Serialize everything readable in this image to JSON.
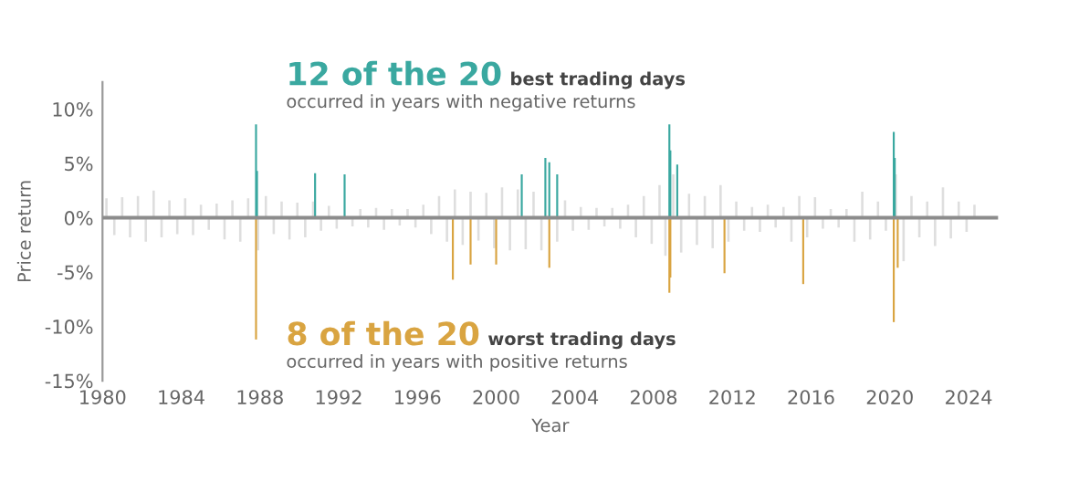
{
  "chart_data": {
    "type": "bar",
    "xlabel": "Year",
    "ylabel": "Price return",
    "xlim": [
      1980,
      2025.5
    ],
    "ylim": [
      -15,
      12.5
    ],
    "xticks": [
      1980,
      1984,
      1988,
      1992,
      1996,
      2000,
      2004,
      2008,
      2012,
      2016,
      2020,
      2024
    ],
    "yticks": [
      {
        "value": 10,
        "label": "10%"
      },
      {
        "value": 5,
        "label": "5%"
      },
      {
        "value": 0,
        "label": "0%"
      },
      {
        "value": -5,
        "label": "-5%"
      },
      {
        "value": -10,
        "label": "-10%"
      },
      {
        "value": -15,
        "label": "-15%"
      }
    ],
    "grid": false,
    "tick_labels": true,
    "ref_lines": [
      {
        "axis": "y",
        "value": 0,
        "color": "#8c8c8c"
      }
    ],
    "series": [
      {
        "color": "#dedede",
        "x": [
          1980.2,
          1980.6,
          1981.0,
          1981.4,
          1981.8,
          1982.2,
          1982.6,
          1983.0,
          1983.4,
          1983.8,
          1984.2,
          1984.6,
          1985.0,
          1985.4,
          1985.8,
          1986.2,
          1986.6,
          1987.0,
          1987.4,
          1987.9,
          1988.3,
          1988.7,
          1989.1,
          1989.5,
          1989.9,
          1990.3,
          1990.7,
          1991.1,
          1991.5,
          1991.9,
          1992.3,
          1992.7,
          1993.1,
          1993.5,
          1993.9,
          1994.3,
          1994.7,
          1995.1,
          1995.5,
          1995.9,
          1996.3,
          1996.7,
          1997.1,
          1997.5,
          1997.9,
          1998.3,
          1998.7,
          1999.1,
          1999.5,
          1999.9,
          2000.3,
          2000.7,
          2001.1,
          2001.5,
          2001.9,
          2002.3,
          2002.7,
          2003.1,
          2003.5,
          2003.9,
          2004.3,
          2004.7,
          2005.1,
          2005.5,
          2005.9,
          2006.3,
          2006.7,
          2007.1,
          2007.5,
          2007.9,
          2008.3,
          2008.6,
          2009.0,
          2009.4,
          2009.8,
          2010.2,
          2010.6,
          2011.0,
          2011.4,
          2011.8,
          2012.2,
          2012.6,
          2013.0,
          2013.4,
          2013.8,
          2014.2,
          2014.6,
          2015.0,
          2015.4,
          2015.8,
          2016.2,
          2016.6,
          2017.0,
          2017.4,
          2017.8,
          2018.2,
          2018.6,
          2019.0,
          2019.4,
          2019.8,
          2020.3,
          2020.7,
          2021.1,
          2021.5,
          2021.9,
          2022.3,
          2022.7,
          2023.1,
          2023.5,
          2023.9,
          2024.3
        ],
        "values": [
          1.8,
          -1.6,
          1.9,
          -1.8,
          2.0,
          -2.2,
          2.5,
          -1.8,
          1.6,
          -1.5,
          1.8,
          -1.6,
          1.2,
          -1.1,
          1.3,
          -2.0,
          1.6,
          -2.2,
          1.8,
          -3.0,
          2.0,
          -1.5,
          1.5,
          -2.0,
          1.4,
          -1.8,
          1.5,
          -1.2,
          1.1,
          -1.0,
          null,
          -0.8,
          0.8,
          -0.9,
          0.9,
          -1.1,
          0.8,
          -0.7,
          0.8,
          -0.9,
          1.2,
          -1.5,
          2.0,
          -2.2,
          2.6,
          -2.5,
          2.4,
          -2.1,
          2.3,
          -2.8,
          2.8,
          -3.0,
          2.6,
          -2.9,
          2.4,
          -3.0,
          null,
          -2.2,
          1.6,
          -1.2,
          1.0,
          -1.1,
          0.9,
          -0.8,
          0.9,
          -1.0,
          1.2,
          -1.8,
          2.0,
          -2.4,
          3.0,
          -3.5,
          4.0,
          -3.2,
          2.2,
          -2.5,
          2.0,
          -2.8,
          3.0,
          -2.2,
          1.5,
          -1.2,
          1.0,
          -1.3,
          1.2,
          -0.9,
          1.0,
          -2.2,
          2.0,
          -1.8,
          1.9,
          -1.0,
          0.8,
          -0.9,
          0.8,
          -2.2,
          2.4,
          -2.0,
          1.5,
          -1.2,
          4.0,
          -4.0,
          2.0,
          -1.8,
          1.5,
          -2.6,
          2.8,
          -1.9,
          1.5,
          -1.3,
          1.2
        ]
      },
      {
        "color": "#3aa8a0",
        "x": [
          1987.8,
          1987.85,
          1990.8,
          1992.3,
          2001.3,
          2002.5,
          2002.7,
          2003.1,
          2008.8,
          2008.85,
          2009.2,
          2020.2,
          2020.25
        ],
        "values": [
          8.6,
          4.3,
          4.1,
          4.0,
          4.0,
          5.5,
          5.1,
          4.0,
          8.6,
          6.2,
          4.9,
          7.9,
          5.5
        ]
      },
      {
        "color": "#d9a441",
        "x": [
          1987.8,
          1997.8,
          1998.7,
          2000.0,
          2002.7,
          2008.8,
          2008.85,
          2011.6,
          2015.6,
          2020.2,
          2020.4
        ],
        "values": [
          -11.2,
          -5.7,
          -4.3,
          -4.3,
          -4.6,
          -6.9,
          -5.5,
          -5.1,
          -6.1,
          -9.6,
          -4.6
        ]
      }
    ],
    "annotations": [
      "12 of the 20",
      "best trading days",
      "occurred in years with negative returns",
      "8 of the 20",
      "worst trading days",
      "occurred in years with positive returns"
    ]
  }
}
